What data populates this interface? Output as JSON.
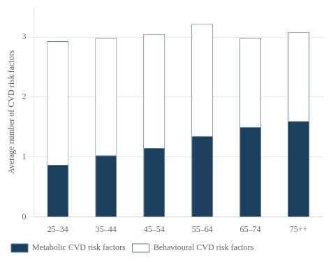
{
  "chart_data": {
    "type": "bar",
    "stacked": true,
    "categories": [
      "25–34",
      "35–44",
      "45–54",
      "55–64",
      "65–74",
      "75++"
    ],
    "series": [
      {
        "name": "Metabolic CVD risk factors",
        "color": "#1d3f5e",
        "values": [
          0.87,
          1.03,
          1.15,
          1.35,
          1.5,
          1.6
        ]
      },
      {
        "name": "Behavioural CVD risk factors",
        "color": "#ffffff",
        "values": [
          2.06,
          1.95,
          1.9,
          1.87,
          1.48,
          1.48
        ]
      }
    ],
    "ylabel": "Average number of CVD risk factors",
    "ylim": [
      0,
      3.5
    ],
    "yticks": [
      0,
      1,
      2,
      3
    ],
    "grid": true,
    "legend": "bottom left"
  }
}
